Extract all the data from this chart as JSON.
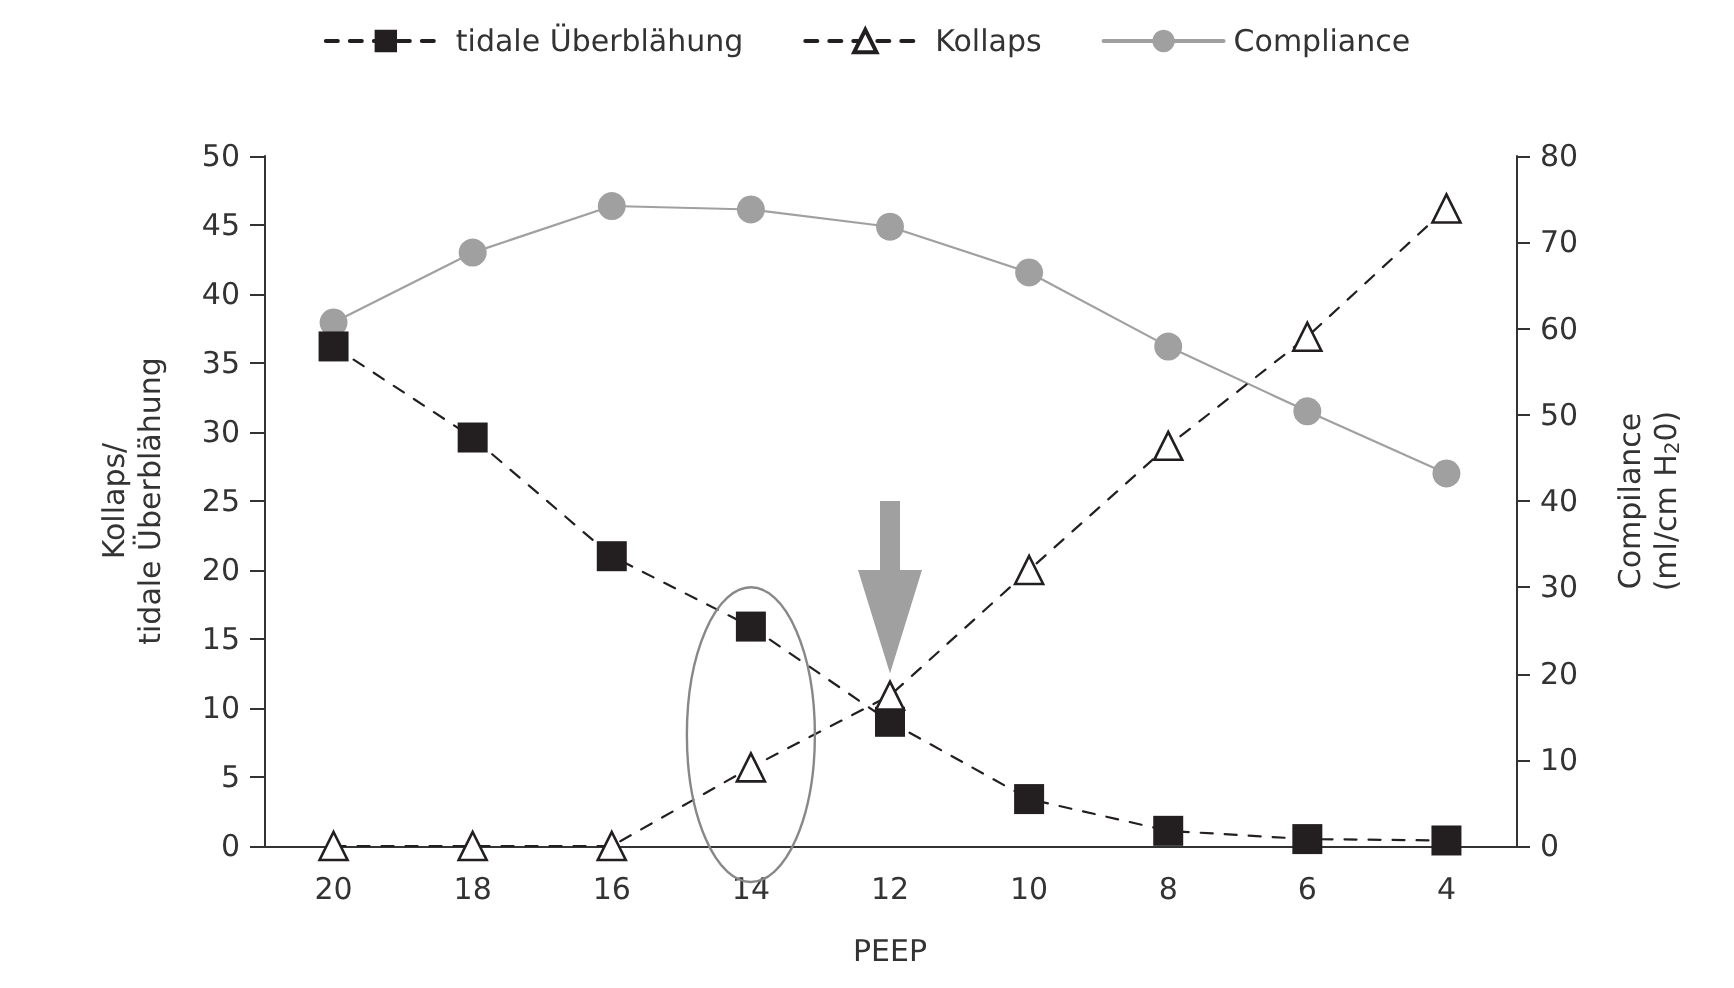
{
  "chart_data": {
    "type": "line",
    "xlabel": "PEEP",
    "ylabel": "Kollaps/\ntidale Überblähung",
    "y2label": "Compilance\n(ml/cm H$_{2}$0)",
    "categories": [
      "20",
      "18",
      "16",
      "14",
      "12",
      "10",
      "8",
      "6",
      "4"
    ],
    "series": [
      {
        "name": "tidale Überblähung",
        "color": "#231f20",
        "marker": "square",
        "line_style": "dashed",
        "values": [
          36.2,
          29.6,
          21.0,
          15.9,
          9.0,
          3.4,
          1.1,
          0.5,
          0.4
        ]
      },
      {
        "name": "Kollaps",
        "color": "#231f20",
        "marker": "triangle",
        "line_style": "dashed",
        "values": [
          0,
          0,
          0,
          5.7,
          10.9,
          20.0,
          29.0,
          36.9,
          46.2
        ]
      },
      {
        "name": "Compliance",
        "color": "#a0a0a1",
        "marker": "circle",
        "line_style": "solid",
        "axis": "y2",
        "values": [
          60.7,
          68.8,
          74.2,
          73.8,
          71.8,
          66.5,
          57.9,
          50.4,
          43.2
        ]
      }
    ],
    "ylim": [
      0,
      50
    ],
    "yticks": [
      0,
      5,
      10,
      15,
      20,
      25,
      30,
      35,
      40,
      45,
      50
    ],
    "y2lim": [
      0,
      80
    ],
    "y2ticks": [
      0,
      10,
      20,
      30,
      40,
      50,
      60,
      70,
      80
    ],
    "grid": false,
    "legend": "top"
  }
}
